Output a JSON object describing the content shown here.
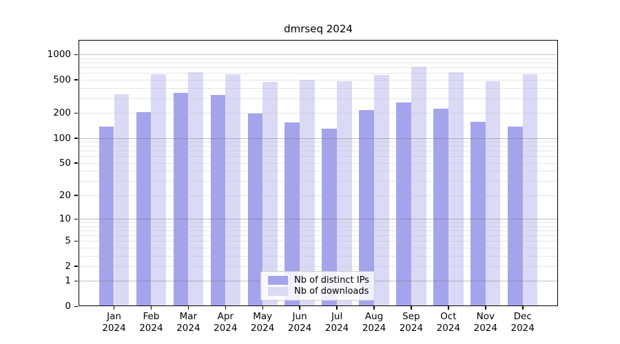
{
  "chart_data": {
    "type": "bar",
    "title": "dmrseq 2024",
    "year_label": "2024",
    "categories": [
      "Jan",
      "Feb",
      "Mar",
      "Apr",
      "May",
      "Jun",
      "Jul",
      "Aug",
      "Sep",
      "Oct",
      "Nov",
      "Dec"
    ],
    "series": [
      {
        "name": "Nb of distinct IPs",
        "color": "#a4a4ed",
        "values": [
          137,
          204,
          348,
          331,
          197,
          154,
          130,
          217,
          266,
          227,
          158,
          137
        ]
      },
      {
        "name": "Nb of downloads",
        "color": "#dadaf6",
        "values": [
          337,
          584,
          615,
          584,
          471,
          501,
          483,
          567,
          719,
          612,
          478,
          584
        ]
      }
    ],
    "yticks": [
      1000,
      500,
      200,
      100,
      50,
      20,
      10,
      5,
      2,
      1,
      0
    ],
    "ylim": [
      0,
      1496
    ],
    "yscale": "log1p",
    "grid": "horizontal; dark major lines at 1,10,100,1000; light minor lines at 2-9 per decade",
    "legend_position": "lower center inside plot",
    "axis_color": "#000000",
    "background_color": "#ffffff"
  }
}
